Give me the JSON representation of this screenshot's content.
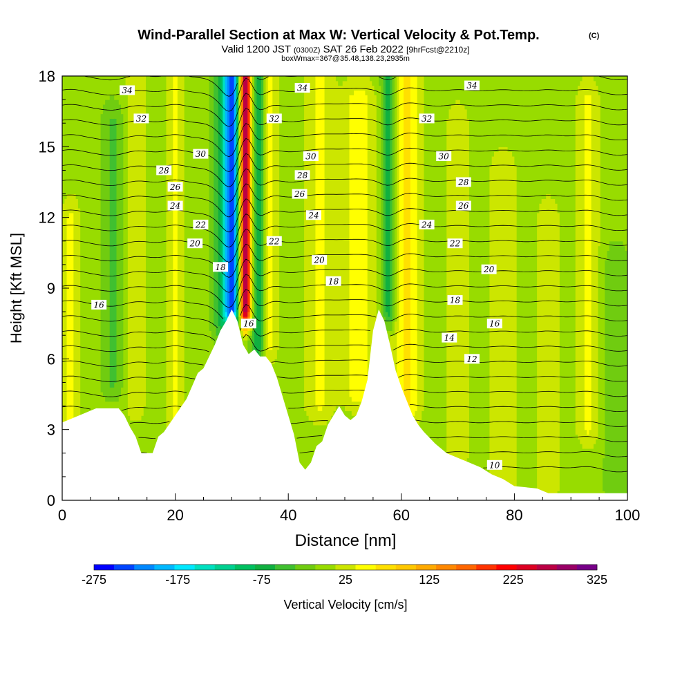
{
  "chart_data": {
    "type": "heatmap",
    "title": "Wind-Parallel Section at Max W: Vertical Velocity & Pot.Temp.",
    "title_suffix": "(C)",
    "subtitle": {
      "part1": "Valid 1200 JST",
      "part2": "(0300Z)",
      "part3": "SAT 26 Feb 2022",
      "part4": "[9hrFcst@2210z]"
    },
    "subtitle2": "boxWmax=367@35.48,138.23,2935m",
    "xlabel": "Distance [nm]",
    "ylabel": "Height [Kft MSL]",
    "xlim": [
      0,
      100
    ],
    "ylim": [
      0,
      18
    ],
    "x_ticks": [
      "0",
      "20",
      "40",
      "60",
      "80",
      "100"
    ],
    "y_ticks": [
      "0",
      "3",
      "6",
      "9",
      "12",
      "15",
      "18"
    ],
    "colorbar": {
      "label": "Vertical Velocity [cm/s]",
      "min": -275,
      "max": 325,
      "step": 25,
      "tick_labels": [
        "-275",
        "-175",
        "-75",
        "25",
        "125",
        "225",
        "325"
      ],
      "colors": [
        "#0000ff",
        "#0044ff",
        "#0088ff",
        "#00b8ff",
        "#00e8ff",
        "#00e0c0",
        "#00d090",
        "#00c060",
        "#10b040",
        "#40c030",
        "#70cc10",
        "#98dc00",
        "#cce600",
        "#ffff00",
        "#ffe000",
        "#ffc800",
        "#ffaa00",
        "#ff8800",
        "#ff6600",
        "#ff3300",
        "#ff0000",
        "#dd0022",
        "#bb0044",
        "#990066",
        "#770088"
      ]
    },
    "terrain": [
      [
        0,
        3.3
      ],
      [
        3,
        3.6
      ],
      [
        6,
        3.9
      ],
      [
        10,
        3.9
      ],
      [
        11,
        3.6
      ],
      [
        12,
        3.1
      ],
      [
        13,
        2.7
      ],
      [
        14,
        2.0
      ],
      [
        16,
        2.0
      ],
      [
        17,
        2.7
      ],
      [
        18,
        2.9
      ],
      [
        20,
        3.6
      ],
      [
        22,
        4.3
      ],
      [
        24,
        5.4
      ],
      [
        25,
        5.6
      ],
      [
        26,
        6.1
      ],
      [
        27,
        6.6
      ],
      [
        28,
        7.2
      ],
      [
        29,
        7.6
      ],
      [
        30,
        8.1
      ],
      [
        31,
        7.6
      ],
      [
        32,
        6.6
      ],
      [
        33,
        6.2
      ],
      [
        34,
        6.4
      ],
      [
        35,
        6.1
      ],
      [
        36,
        6.1
      ],
      [
        37,
        5.8
      ],
      [
        38,
        5.2
      ],
      [
        39,
        4.4
      ],
      [
        40,
        3.6
      ],
      [
        41,
        2.8
      ],
      [
        42,
        1.6
      ],
      [
        43,
        1.3
      ],
      [
        44,
        1.6
      ],
      [
        45,
        2.3
      ],
      [
        46,
        2.5
      ],
      [
        47,
        3.2
      ],
      [
        48,
        3.6
      ],
      [
        49,
        4.0
      ],
      [
        50,
        3.6
      ],
      [
        51,
        3.4
      ],
      [
        52,
        3.6
      ],
      [
        53,
        4.2
      ],
      [
        54,
        5.1
      ],
      [
        55,
        7.2
      ],
      [
        56,
        8.1
      ],
      [
        57,
        7.6
      ],
      [
        58,
        6.6
      ],
      [
        59,
        5.5
      ],
      [
        60,
        4.8
      ],
      [
        61,
        4.2
      ],
      [
        62,
        3.6
      ],
      [
        63,
        3.2
      ],
      [
        64,
        2.9
      ],
      [
        66,
        2.4
      ],
      [
        68,
        2.0
      ],
      [
        70,
        1.8
      ],
      [
        72,
        1.6
      ],
      [
        74,
        1.4
      ],
      [
        76,
        1.1
      ],
      [
        78,
        0.9
      ],
      [
        80,
        0.6
      ],
      [
        84,
        0.5
      ],
      [
        86,
        0.3
      ],
      [
        100,
        0.3
      ]
    ],
    "velocity_features": [
      {
        "x": 30.0,
        "width": 1.4,
        "amplitude": -250,
        "z_bottom": 8.0,
        "z_top": 18.0
      },
      {
        "x": 32.4,
        "width": 1.0,
        "amplitude": 300,
        "z_bottom": 8.0,
        "z_top": 18.0
      },
      {
        "x": 34.8,
        "width": 1.3,
        "amplitude": -90,
        "z_bottom": 6.5,
        "z_top": 18.0
      },
      {
        "x": 36.5,
        "width": 1.6,
        "amplitude": 55,
        "z_bottom": 6.5,
        "z_top": 18.0
      },
      {
        "x": 28.0,
        "width": 1.5,
        "amplitude": -60,
        "z_bottom": 7.5,
        "z_top": 18.0
      },
      {
        "x": 45.5,
        "width": 2.5,
        "amplitude": 45,
        "z_bottom": 4.0,
        "z_top": 18.0
      },
      {
        "x": 52.5,
        "width": 3.0,
        "amplitude": 55,
        "z_bottom": 4.5,
        "z_top": 17.0
      },
      {
        "x": 57.8,
        "width": 1.3,
        "amplitude": -85,
        "z_bottom": 8.0,
        "z_top": 18.0
      },
      {
        "x": 61.0,
        "width": 2.5,
        "amplitude": 70,
        "z_bottom": 4.0,
        "z_top": 18.0
      },
      {
        "x": 20.0,
        "width": 1.5,
        "amplitude": 45,
        "z_bottom": 2.8,
        "z_top": 18.0
      },
      {
        "x": 13.0,
        "width": 1.8,
        "amplitude": 35,
        "z_bottom": 4.0,
        "z_top": 18.0
      },
      {
        "x": 1.5,
        "width": 1.8,
        "amplitude": 45,
        "z_bottom": 3.5,
        "z_top": 12.0
      },
      {
        "x": 9.0,
        "width": 2.0,
        "amplitude": -40,
        "z_bottom": 5.0,
        "z_top": 16.0
      },
      {
        "x": 70.0,
        "width": 2.0,
        "amplitude": 40,
        "z_bottom": 2.0,
        "z_top": 16.0
      },
      {
        "x": 78.0,
        "width": 2.5,
        "amplitude": 40,
        "z_bottom": 0.8,
        "z_top": 14.0
      },
      {
        "x": 86.0,
        "width": 2.0,
        "amplitude": 40,
        "z_bottom": 0.5,
        "z_top": 12.0
      },
      {
        "x": 93.0,
        "width": 2.0,
        "amplitude": 45,
        "z_bottom": 3.0,
        "z_top": 17.0
      },
      {
        "x": 98.0,
        "width": 2.0,
        "amplitude": -35,
        "z_bottom": 0.5,
        "z_top": 10.0
      }
    ],
    "theta_contour_labels": [
      {
        "x": 11.5,
        "y": 17.4,
        "label": "34"
      },
      {
        "x": 14.0,
        "y": 16.2,
        "label": "32"
      },
      {
        "x": 24.5,
        "y": 14.7,
        "label": "30"
      },
      {
        "x": 18.0,
        "y": 14.0,
        "label": "28"
      },
      {
        "x": 20.0,
        "y": 13.3,
        "label": "26"
      },
      {
        "x": 20.0,
        "y": 12.5,
        "label": "24"
      },
      {
        "x": 24.5,
        "y": 11.7,
        "label": "22"
      },
      {
        "x": 23.5,
        "y": 10.9,
        "label": "20"
      },
      {
        "x": 28.0,
        "y": 9.9,
        "label": "18"
      },
      {
        "x": 6.5,
        "y": 8.3,
        "label": "16"
      },
      {
        "x": 33.0,
        "y": 7.5,
        "label": "16"
      },
      {
        "x": 42.5,
        "y": 17.5,
        "label": "34"
      },
      {
        "x": 37.5,
        "y": 16.2,
        "label": "32"
      },
      {
        "x": 44.0,
        "y": 14.6,
        "label": "30"
      },
      {
        "x": 42.5,
        "y": 13.8,
        "label": "28"
      },
      {
        "x": 42.0,
        "y": 13.0,
        "label": "26"
      },
      {
        "x": 44.5,
        "y": 12.1,
        "label": "24"
      },
      {
        "x": 37.5,
        "y": 11.0,
        "label": "22"
      },
      {
        "x": 45.5,
        "y": 10.2,
        "label": "20"
      },
      {
        "x": 48.0,
        "y": 9.3,
        "label": "18"
      },
      {
        "x": 72.5,
        "y": 17.6,
        "label": "34"
      },
      {
        "x": 64.5,
        "y": 16.2,
        "label": "32"
      },
      {
        "x": 67.5,
        "y": 14.6,
        "label": "30"
      },
      {
        "x": 71.0,
        "y": 13.5,
        "label": "28"
      },
      {
        "x": 71.0,
        "y": 12.5,
        "label": "26"
      },
      {
        "x": 64.5,
        "y": 11.7,
        "label": "24"
      },
      {
        "x": 69.5,
        "y": 10.9,
        "label": "22"
      },
      {
        "x": 75.5,
        "y": 9.8,
        "label": "20"
      },
      {
        "x": 69.5,
        "y": 8.5,
        "label": "18"
      },
      {
        "x": 76.5,
        "y": 7.5,
        "label": "16"
      },
      {
        "x": 68.5,
        "y": 6.9,
        "label": "14"
      },
      {
        "x": 72.5,
        "y": 6.0,
        "label": "12"
      },
      {
        "x": 76.5,
        "y": 1.5,
        "label": "10"
      }
    ]
  }
}
